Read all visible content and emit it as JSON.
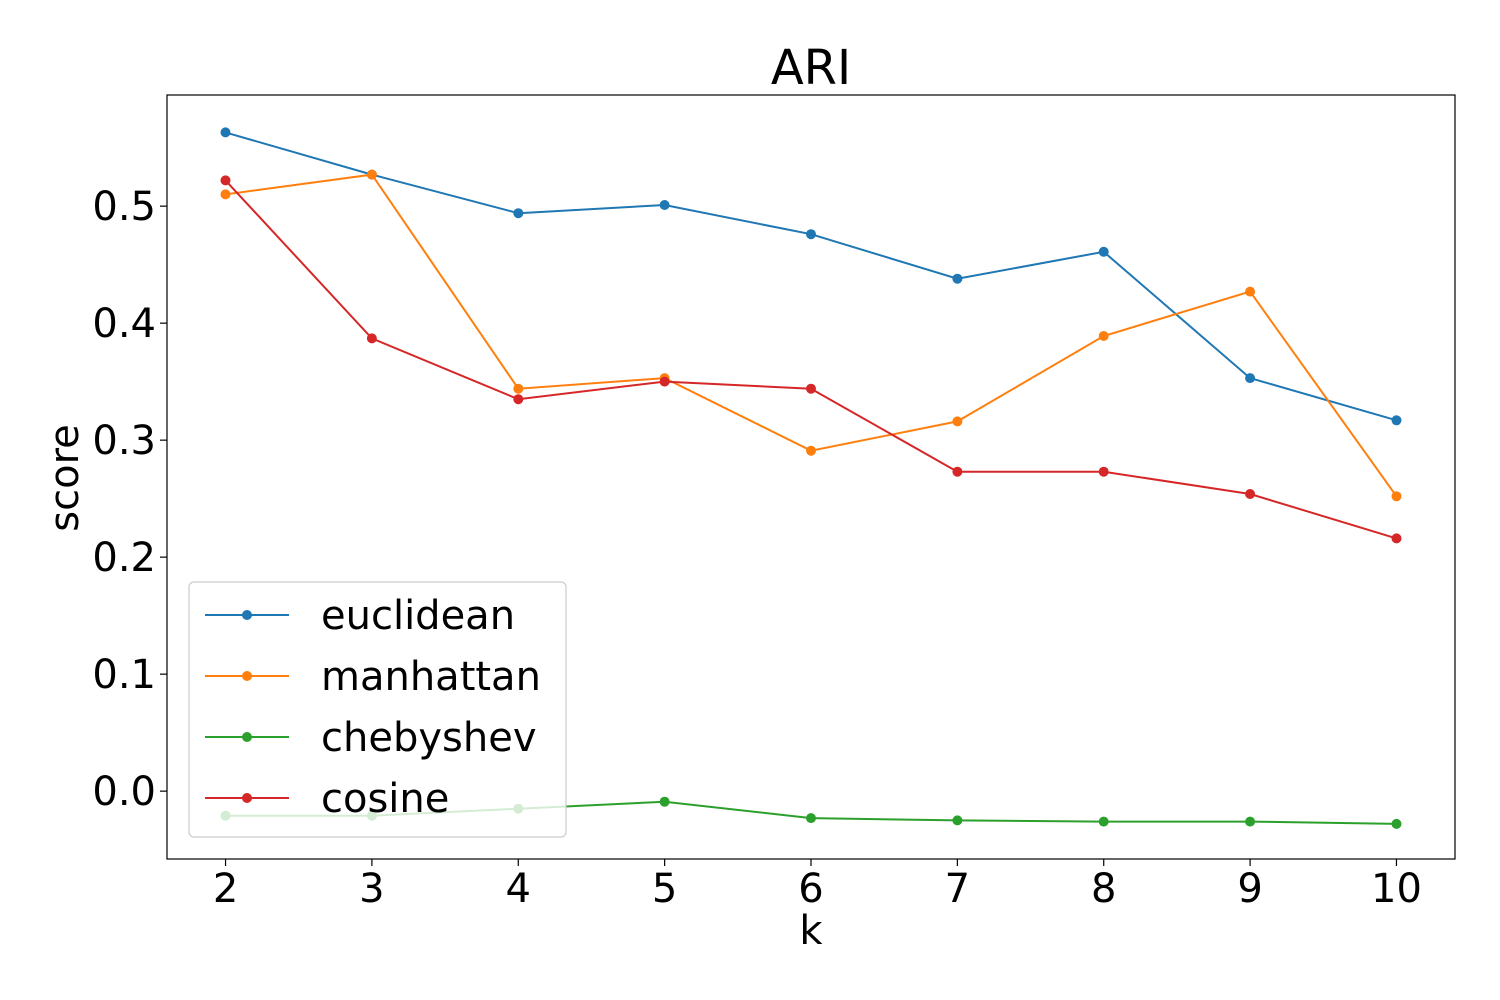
{
  "chart_data": {
    "type": "line",
    "title": "ARI",
    "xlabel": "k",
    "ylabel": "score",
    "x": [
      2,
      3,
      4,
      5,
      6,
      7,
      8,
      9,
      10
    ],
    "xlim": [
      1.6,
      10.4
    ],
    "ylim": [
      -0.058,
      0.595
    ],
    "xticks": [
      2,
      3,
      4,
      5,
      6,
      7,
      8,
      9,
      10
    ],
    "yticks": [
      0.0,
      0.1,
      0.2,
      0.3,
      0.4,
      0.5
    ],
    "ytick_labels": [
      "0.0",
      "0.1",
      "0.2",
      "0.3",
      "0.4",
      "0.5"
    ],
    "grid": false,
    "legend_position": "lower-left",
    "series": [
      {
        "name": "euclidean",
        "color": "#1f77b4",
        "values": [
          0.563,
          0.527,
          0.494,
          0.501,
          0.476,
          0.438,
          0.461,
          0.353,
          0.317
        ]
      },
      {
        "name": "manhattan",
        "color": "#ff7f0e",
        "values": [
          0.51,
          0.527,
          0.344,
          0.353,
          0.291,
          0.316,
          0.389,
          0.427,
          0.252
        ]
      },
      {
        "name": "chebyshev",
        "color": "#2ca02c",
        "values": [
          -0.021,
          -0.021,
          -0.015,
          -0.009,
          -0.023,
          -0.025,
          -0.026,
          -0.026,
          -0.028
        ]
      },
      {
        "name": "cosine",
        "color": "#d62728",
        "values": [
          0.522,
          0.387,
          0.335,
          0.35,
          0.344,
          0.273,
          0.273,
          0.254,
          0.216
        ]
      }
    ]
  }
}
